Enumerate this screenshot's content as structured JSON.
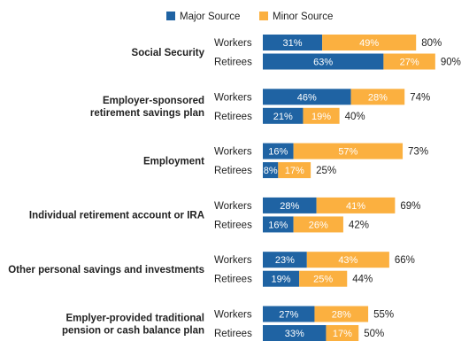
{
  "chart_data": {
    "type": "bar",
    "orientation": "horizontal",
    "stacked": true,
    "legend": {
      "placement": "top",
      "entries": [
        {
          "name": "Major Source",
          "color": "#1f63a3"
        },
        {
          "name": "Minor Source",
          "color": "#fbb040"
        }
      ]
    },
    "categories": [
      {
        "label_lines": [
          "Social Security"
        ],
        "rows": [
          {
            "label": "Workers",
            "major": 31,
            "minor": 49,
            "total": 80,
            "major_label": "31%",
            "minor_label": "49%",
            "total_label": "80%"
          },
          {
            "label": "Retirees",
            "major": 63,
            "minor": 27,
            "total": 90,
            "major_label": "63%",
            "minor_label": "27%",
            "total_label": "90%"
          }
        ]
      },
      {
        "label_lines": [
          "Employer-sponsored",
          "retirement savings plan"
        ],
        "rows": [
          {
            "label": "Workers",
            "major": 46,
            "minor": 28,
            "total": 74,
            "major_label": "46%",
            "minor_label": "28%",
            "total_label": "74%"
          },
          {
            "label": "Retirees",
            "major": 21,
            "minor": 19,
            "total": 40,
            "major_label": "21%",
            "minor_label": "19%",
            "total_label": "40%"
          }
        ]
      },
      {
        "label_lines": [
          "Employment"
        ],
        "rows": [
          {
            "label": "Workers",
            "major": 16,
            "minor": 57,
            "total": 73,
            "major_label": "16%",
            "minor_label": "57%",
            "total_label": "73%"
          },
          {
            "label": "Retirees",
            "major": 8,
            "minor": 17,
            "total": 25,
            "major_label": "8%",
            "minor_label": "17%",
            "total_label": "25%"
          }
        ]
      },
      {
        "label_lines": [
          "Individual retirement account or IRA"
        ],
        "rows": [
          {
            "label": "Workers",
            "major": 28,
            "minor": 41,
            "total": 69,
            "major_label": "28%",
            "minor_label": "41%",
            "total_label": "69%"
          },
          {
            "label": "Retirees",
            "major": 16,
            "minor": 26,
            "total": 42,
            "major_label": "16%",
            "minor_label": "26%",
            "total_label": "42%"
          }
        ]
      },
      {
        "label_lines": [
          "Other personal savings and investments"
        ],
        "rows": [
          {
            "label": "Workers",
            "major": 23,
            "minor": 43,
            "total": 66,
            "major_label": "23%",
            "minor_label": "43%",
            "total_label": "66%"
          },
          {
            "label": "Retirees",
            "major": 19,
            "minor": 25,
            "total": 44,
            "major_label": "19%",
            "minor_label": "25%",
            "total_label": "44%"
          }
        ]
      },
      {
        "label_lines": [
          "Emplyer-provided traditional",
          "pension or cash balance plan"
        ],
        "rows": [
          {
            "label": "Workers",
            "major": 27,
            "minor": 28,
            "total": 55,
            "major_label": "27%",
            "minor_label": "28%",
            "total_label": "55%"
          },
          {
            "label": "Retirees",
            "major": 33,
            "minor": 17,
            "total": 50,
            "major_label": "33%",
            "minor_label": "17%",
            "total_label": "50%"
          }
        ]
      }
    ],
    "xlim": [
      0,
      100
    ],
    "grid": false
  }
}
